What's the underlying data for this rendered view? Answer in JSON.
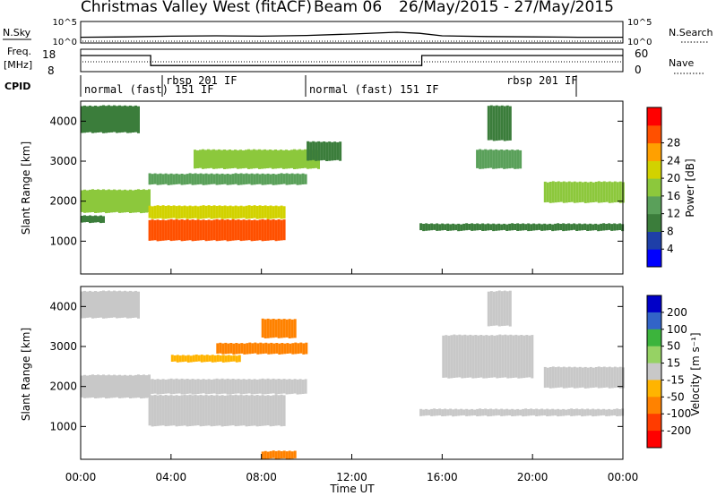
{
  "title": {
    "station": "Christmas Valley West (fitACF)",
    "beam": "Beam 06",
    "dates": "26/May/2015 - 27/May/2015"
  },
  "header": {
    "nsky_label": "N.Sky",
    "nsky_ticks": [
      "10^5",
      "10^0"
    ],
    "nsearch_label": "N.Search",
    "nsearch_ticks": [
      "10^5",
      "10^0"
    ],
    "freq_label": "Freq.",
    "freq_unit": "[MHz]",
    "freq_ticks": [
      "18",
      "8"
    ],
    "nave_label": "Nave",
    "nave_ticks": [
      "60",
      "0"
    ],
    "cpid_label": "CPID"
  },
  "chart_data": [
    {
      "type": "line",
      "name": "noise-panel",
      "x_hours": [
        0,
        2,
        4,
        6,
        8,
        10,
        12,
        14,
        15,
        16,
        18,
        20,
        22,
        24
      ],
      "nsky_log": [
        1.1,
        1.2,
        1.4,
        1.5,
        1.4,
        1.6,
        2.0,
        2.5,
        2.2,
        1.5,
        1.3,
        1.2,
        1.1,
        1.1
      ]
    },
    {
      "type": "line",
      "name": "frequency-panel",
      "freq_steps": [
        {
          "start": 0,
          "end": 3.1,
          "value": 18
        },
        {
          "start": 3.1,
          "end": 15.1,
          "value": 10
        },
        {
          "start": 15.1,
          "end": 24,
          "value": 18
        }
      ],
      "nave_ylim": [
        0,
        60
      ],
      "freq_ylim": [
        8,
        18
      ]
    },
    {
      "type": "table",
      "name": "cpid-panel",
      "segments": [
        {
          "start": 0,
          "label": "normal (fast) 151 IF"
        },
        {
          "start": 3.8,
          "label": "rbsp 201 IF"
        },
        {
          "start": 10,
          "label": "normal (fast) 151 IF"
        },
        {
          "start": 21.8,
          "label": "rbsp 201 IF"
        }
      ]
    },
    {
      "type": "heatmap",
      "name": "power-panel",
      "ylabel": "Slant Range [km]",
      "yticks": [
        1000,
        2000,
        3000,
        4000
      ],
      "ylim": [
        180,
        4500
      ],
      "colorbar_label": "Power [dB]",
      "colorbar_ticks": [
        4,
        8,
        12,
        16,
        20,
        24,
        28
      ],
      "colorbar_colors": [
        "#0000ff",
        "#1e3fa8",
        "#3b7d3b",
        "#5aa05a",
        "#8cc83c",
        "#d2d200",
        "#ffa000",
        "#ff5000",
        "#ff0000"
      ],
      "bands": [
        {
          "t0": 0,
          "t1": 3,
          "r0": 1700,
          "r1": 2300,
          "db": 16
        },
        {
          "t0": 0,
          "t1": 1,
          "r0": 1450,
          "r1": 1650,
          "db": 6
        },
        {
          "t0": 3,
          "t1": 9,
          "r0": 1000,
          "r1": 1550,
          "db": 26
        },
        {
          "t0": 3,
          "t1": 9,
          "r0": 1550,
          "r1": 1900,
          "db": 18
        },
        {
          "t0": 3,
          "t1": 10,
          "r0": 2400,
          "r1": 2700,
          "db": 10
        },
        {
          "t0": 5,
          "t1": 10.5,
          "r0": 2800,
          "r1": 3300,
          "db": 14
        },
        {
          "t0": 0,
          "t1": 2.5,
          "r0": 3700,
          "r1": 4400,
          "db": 6
        },
        {
          "t0": 10,
          "t1": 11.5,
          "r0": 3000,
          "r1": 3500,
          "db": 6
        },
        {
          "t0": 15,
          "t1": 24,
          "r0": 1250,
          "r1": 1450,
          "db": 6
        },
        {
          "t0": 20.5,
          "t1": 24,
          "r0": 1950,
          "r1": 2500,
          "db": 14
        },
        {
          "t0": 17.5,
          "t1": 19.5,
          "r0": 2800,
          "r1": 3300,
          "db": 10
        },
        {
          "t0": 18,
          "t1": 19,
          "r0": 3500,
          "r1": 4400,
          "db": 6
        }
      ]
    },
    {
      "type": "heatmap",
      "name": "velocity-panel",
      "ylabel": "Slant Range [km]",
      "yticks": [
        1000,
        2000,
        3000,
        4000
      ],
      "ylim": [
        180,
        4500
      ],
      "colorbar_label": "Velocity [m s⁻¹]",
      "colorbar_ticks": [
        "200",
        "100",
        "50",
        "15",
        "-15",
        "-50",
        "-100",
        "-200"
      ],
      "colorbar_colors": [
        "#0000c8",
        "#3264c8",
        "#3cb43c",
        "#96d264",
        "#c8c8c8",
        "#ffb400",
        "#ff8200",
        "#ff3c00",
        "#ff0000"
      ],
      "bands": [
        {
          "t0": 0,
          "t1": 3,
          "r0": 1700,
          "r1": 2300,
          "v": 0
        },
        {
          "t0": 3,
          "t1": 9,
          "r0": 1000,
          "r1": 1800,
          "v": 0
        },
        {
          "t0": 3,
          "t1": 10,
          "r0": 1800,
          "r1": 2200,
          "v": 0
        },
        {
          "t0": 4,
          "t1": 7,
          "r0": 2600,
          "r1": 2800,
          "v": -40
        },
        {
          "t0": 6,
          "t1": 10,
          "r0": 2800,
          "r1": 3100,
          "v": -60
        },
        {
          "t0": 8,
          "t1": 9.5,
          "r0": 3200,
          "r1": 3700,
          "v": -60
        },
        {
          "t0": 0,
          "t1": 2.5,
          "r0": 3700,
          "r1": 4400,
          "v": 0
        },
        {
          "t0": 15,
          "t1": 24,
          "r0": 1250,
          "r1": 1450,
          "v": 0
        },
        {
          "t0": 16,
          "t1": 20,
          "r0": 2200,
          "r1": 3300,
          "v": 0
        },
        {
          "t0": 20.5,
          "t1": 24,
          "r0": 1950,
          "r1": 2500,
          "v": 0
        },
        {
          "t0": 18,
          "t1": 19,
          "r0": 3500,
          "r1": 4400,
          "v": 0
        },
        {
          "t0": 8,
          "t1": 9.5,
          "r0": 180,
          "r1": 400,
          "v": -60
        }
      ]
    }
  ],
  "x_axis": {
    "ticks": [
      "00:00",
      "04:00",
      "08:00",
      "12:00",
      "16:00",
      "20:00",
      "00:00"
    ],
    "label": "Time UT"
  }
}
